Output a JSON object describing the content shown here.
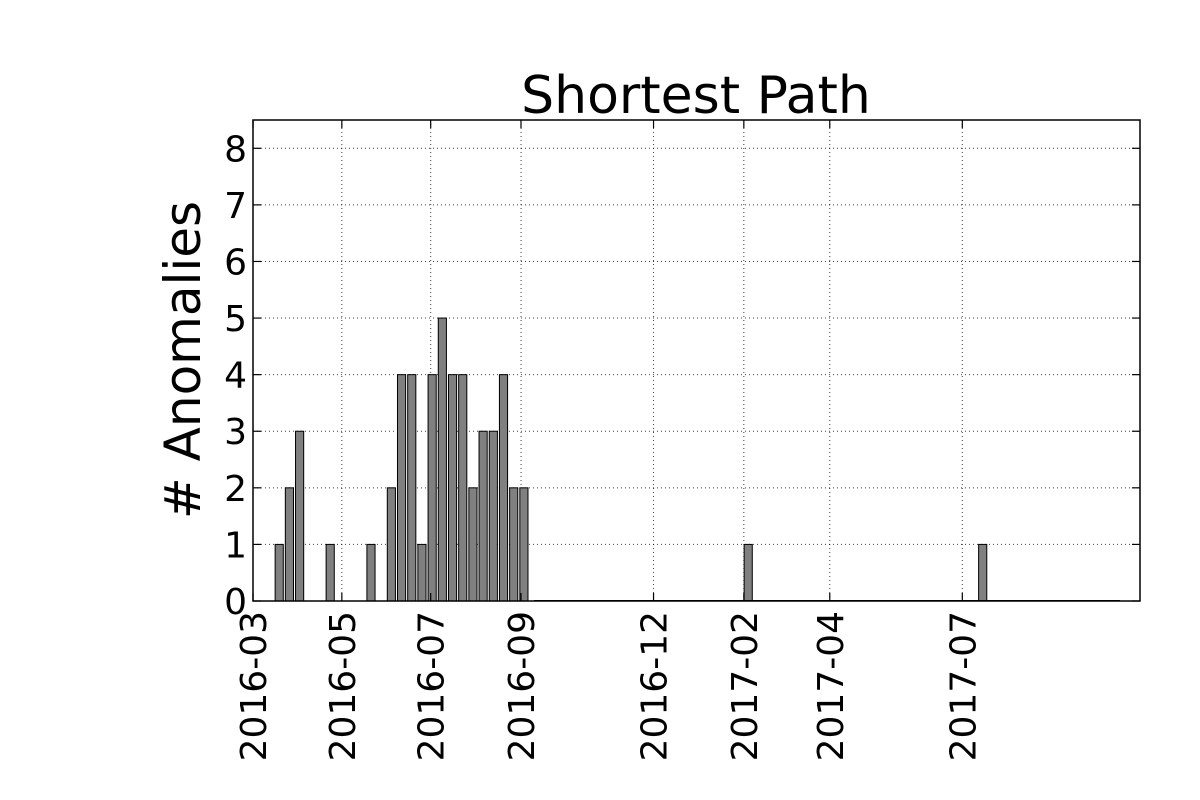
{
  "chart_data": {
    "type": "bar",
    "title": "Shortest Path",
    "xlabel": "",
    "ylabel": "# Anomalies",
    "ylim": [
      0,
      8.5
    ],
    "yticks": [
      0,
      1,
      2,
      3,
      4,
      5,
      6,
      7,
      8
    ],
    "x_tick_labels": [
      "2016-03",
      "2016-05",
      "2016-07",
      "2016-09",
      "2016-12",
      "2017-02",
      "2017-04",
      "2017-07"
    ],
    "grid": true,
    "bar_color": "#808080",
    "series": [
      {
        "values": [
          {
            "date": "2016-03-19",
            "value": 1
          },
          {
            "date": "2016-03-26",
            "value": 2
          },
          {
            "date": "2016-04-02",
            "value": 3
          },
          {
            "date": "2016-04-23",
            "value": 1
          },
          {
            "date": "2016-05-21",
            "value": 1
          },
          {
            "date": "2016-06-04",
            "value": 2
          },
          {
            "date": "2016-06-11",
            "value": 4
          },
          {
            "date": "2016-06-18",
            "value": 4
          },
          {
            "date": "2016-06-25",
            "value": 1
          },
          {
            "date": "2016-07-02",
            "value": 4
          },
          {
            "date": "2016-07-09",
            "value": 5
          },
          {
            "date": "2016-07-16",
            "value": 4
          },
          {
            "date": "2016-07-23",
            "value": 4
          },
          {
            "date": "2016-07-30",
            "value": 2
          },
          {
            "date": "2016-08-06",
            "value": 3
          },
          {
            "date": "2016-08-13",
            "value": 3
          },
          {
            "date": "2016-08-20",
            "value": 4
          },
          {
            "date": "2016-08-27",
            "value": 2
          },
          {
            "date": "2016-09-03",
            "value": 2
          },
          {
            "date": "2017-02-04",
            "value": 1
          },
          {
            "date": "2017-07-15",
            "value": 1
          }
        ]
      }
    ]
  }
}
